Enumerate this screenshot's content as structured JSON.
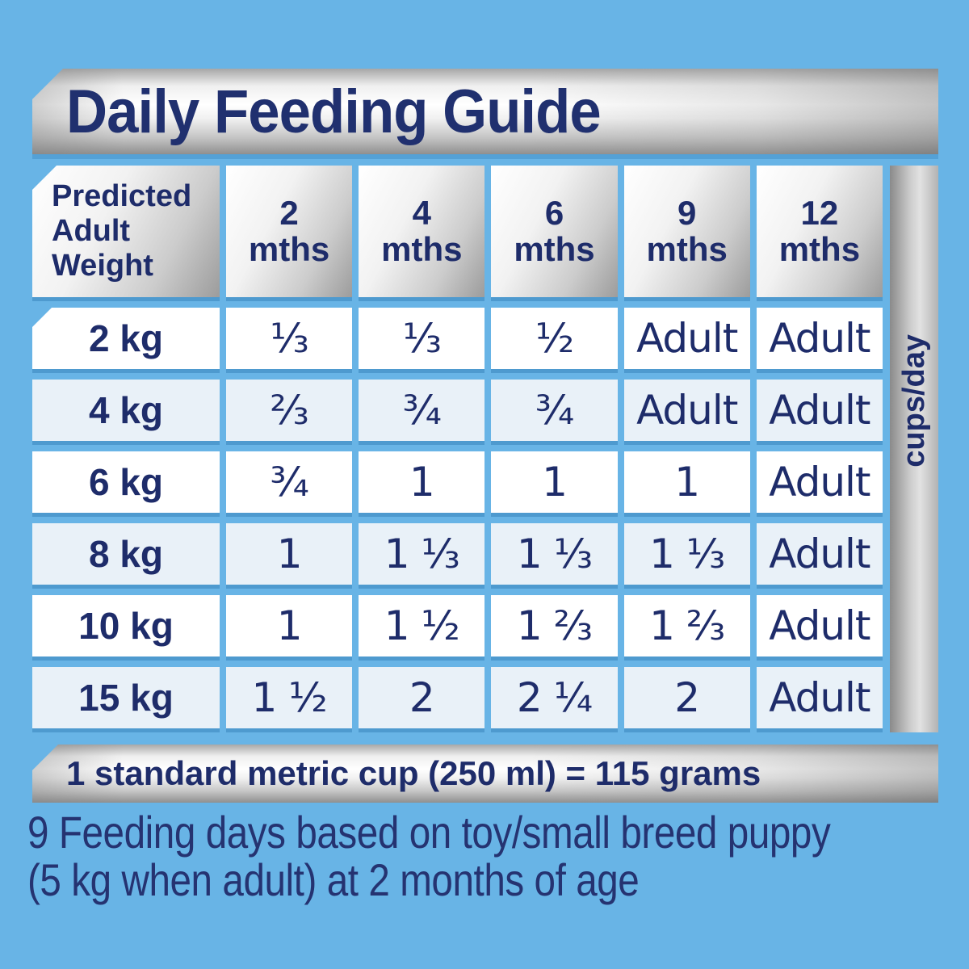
{
  "title": "Daily Feeding Guide",
  "table": {
    "corner_lines": [
      "Predicted",
      "Adult",
      "Weight"
    ],
    "columns": [
      {
        "num": "2",
        "unit": "mths"
      },
      {
        "num": "4",
        "unit": "mths"
      },
      {
        "num": "6",
        "unit": "mths"
      },
      {
        "num": "9",
        "unit": "mths"
      },
      {
        "num": "12",
        "unit": "mths"
      }
    ],
    "unit_label": "cups/day",
    "rows": [
      {
        "weight": "2 kg",
        "values": [
          "⅓",
          "⅓",
          "½",
          "Adult",
          "Adult"
        ]
      },
      {
        "weight": "4 kg",
        "values": [
          "⅔",
          "¾",
          "¾",
          "Adult",
          "Adult"
        ]
      },
      {
        "weight": "6 kg",
        "values": [
          "¾",
          "1",
          "1",
          "1",
          "Adult"
        ]
      },
      {
        "weight": "8 kg",
        "values": [
          "1",
          "1 ⅓",
          "1 ⅓",
          "1 ⅓",
          "Adult"
        ]
      },
      {
        "weight": "10 kg",
        "values": [
          "1",
          "1 ½",
          "1 ⅔",
          "1 ⅔",
          "Adult"
        ]
      },
      {
        "weight": "15 kg",
        "values": [
          "1 ½",
          "2",
          "2 ¼",
          "2",
          "Adult"
        ]
      }
    ]
  },
  "cup_note": "1 standard metric cup (250 ml) = 115 grams",
  "footnote": {
    "line1": "9 Feeding days based on toy/small breed puppy",
    "line2": "(5 kg when adult) at 2 months of age"
  },
  "colors": {
    "background": "#68b4e6",
    "text_navy": "#1e2c6a",
    "cell_white": "#ffffff",
    "cell_tint": "#e9f1f8",
    "shadow_blue": "#4e9acf",
    "metal_light": "#ffffff",
    "metal_dark": "#8f8f8f"
  }
}
